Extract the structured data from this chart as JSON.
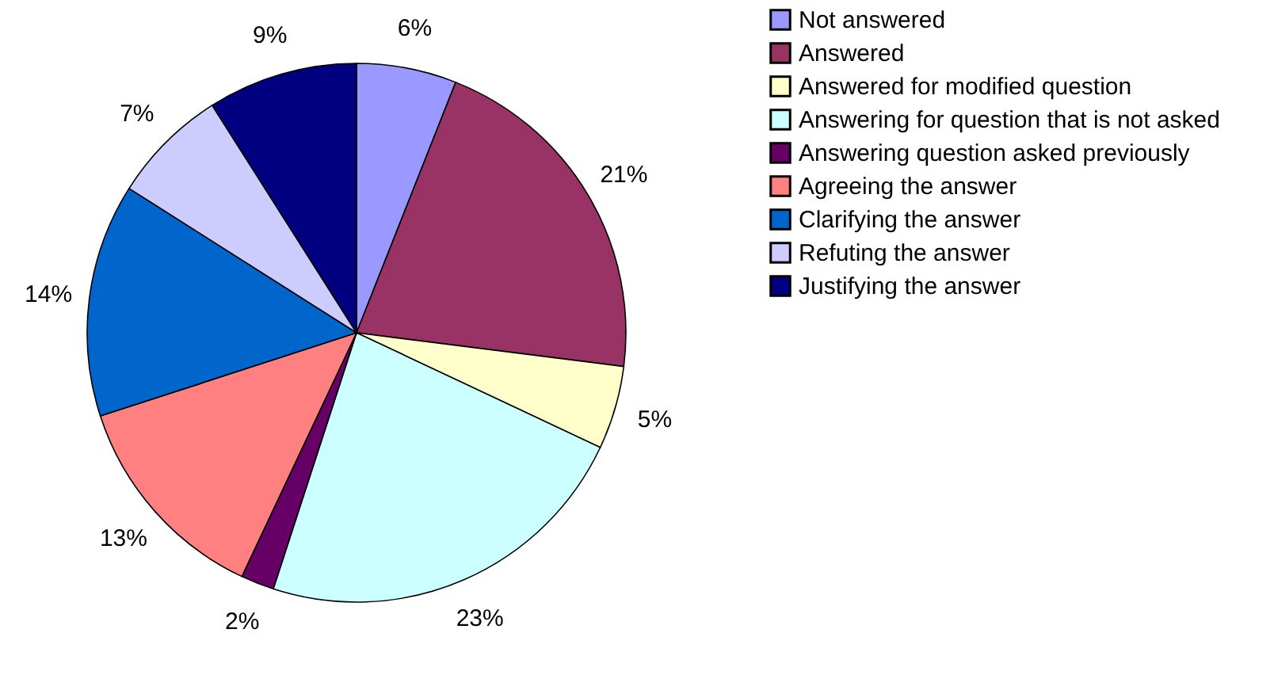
{
  "chart_data": {
    "type": "pie",
    "categories": [
      "Not answered",
      "Answered",
      "Answered for modified question",
      "Answering for question that is not asked",
      "Answering question asked previously",
      "Agreeing the answer",
      "Clarifying the answer",
      "Refuting the answer",
      "Justifying the answer"
    ],
    "values": [
      6,
      21,
      5,
      23,
      2,
      13,
      14,
      7,
      9
    ],
    "value_labels": [
      "6%",
      "21%",
      "5%",
      "23%",
      "2%",
      "13%",
      "14%",
      "7%",
      "9%"
    ],
    "colors": [
      "#9999ff",
      "#993366",
      "#ffffcc",
      "#ccffff",
      "#660066",
      "#ff8080",
      "#0066cc",
      "#ccccff",
      "#000080"
    ],
    "legend": "right"
  }
}
